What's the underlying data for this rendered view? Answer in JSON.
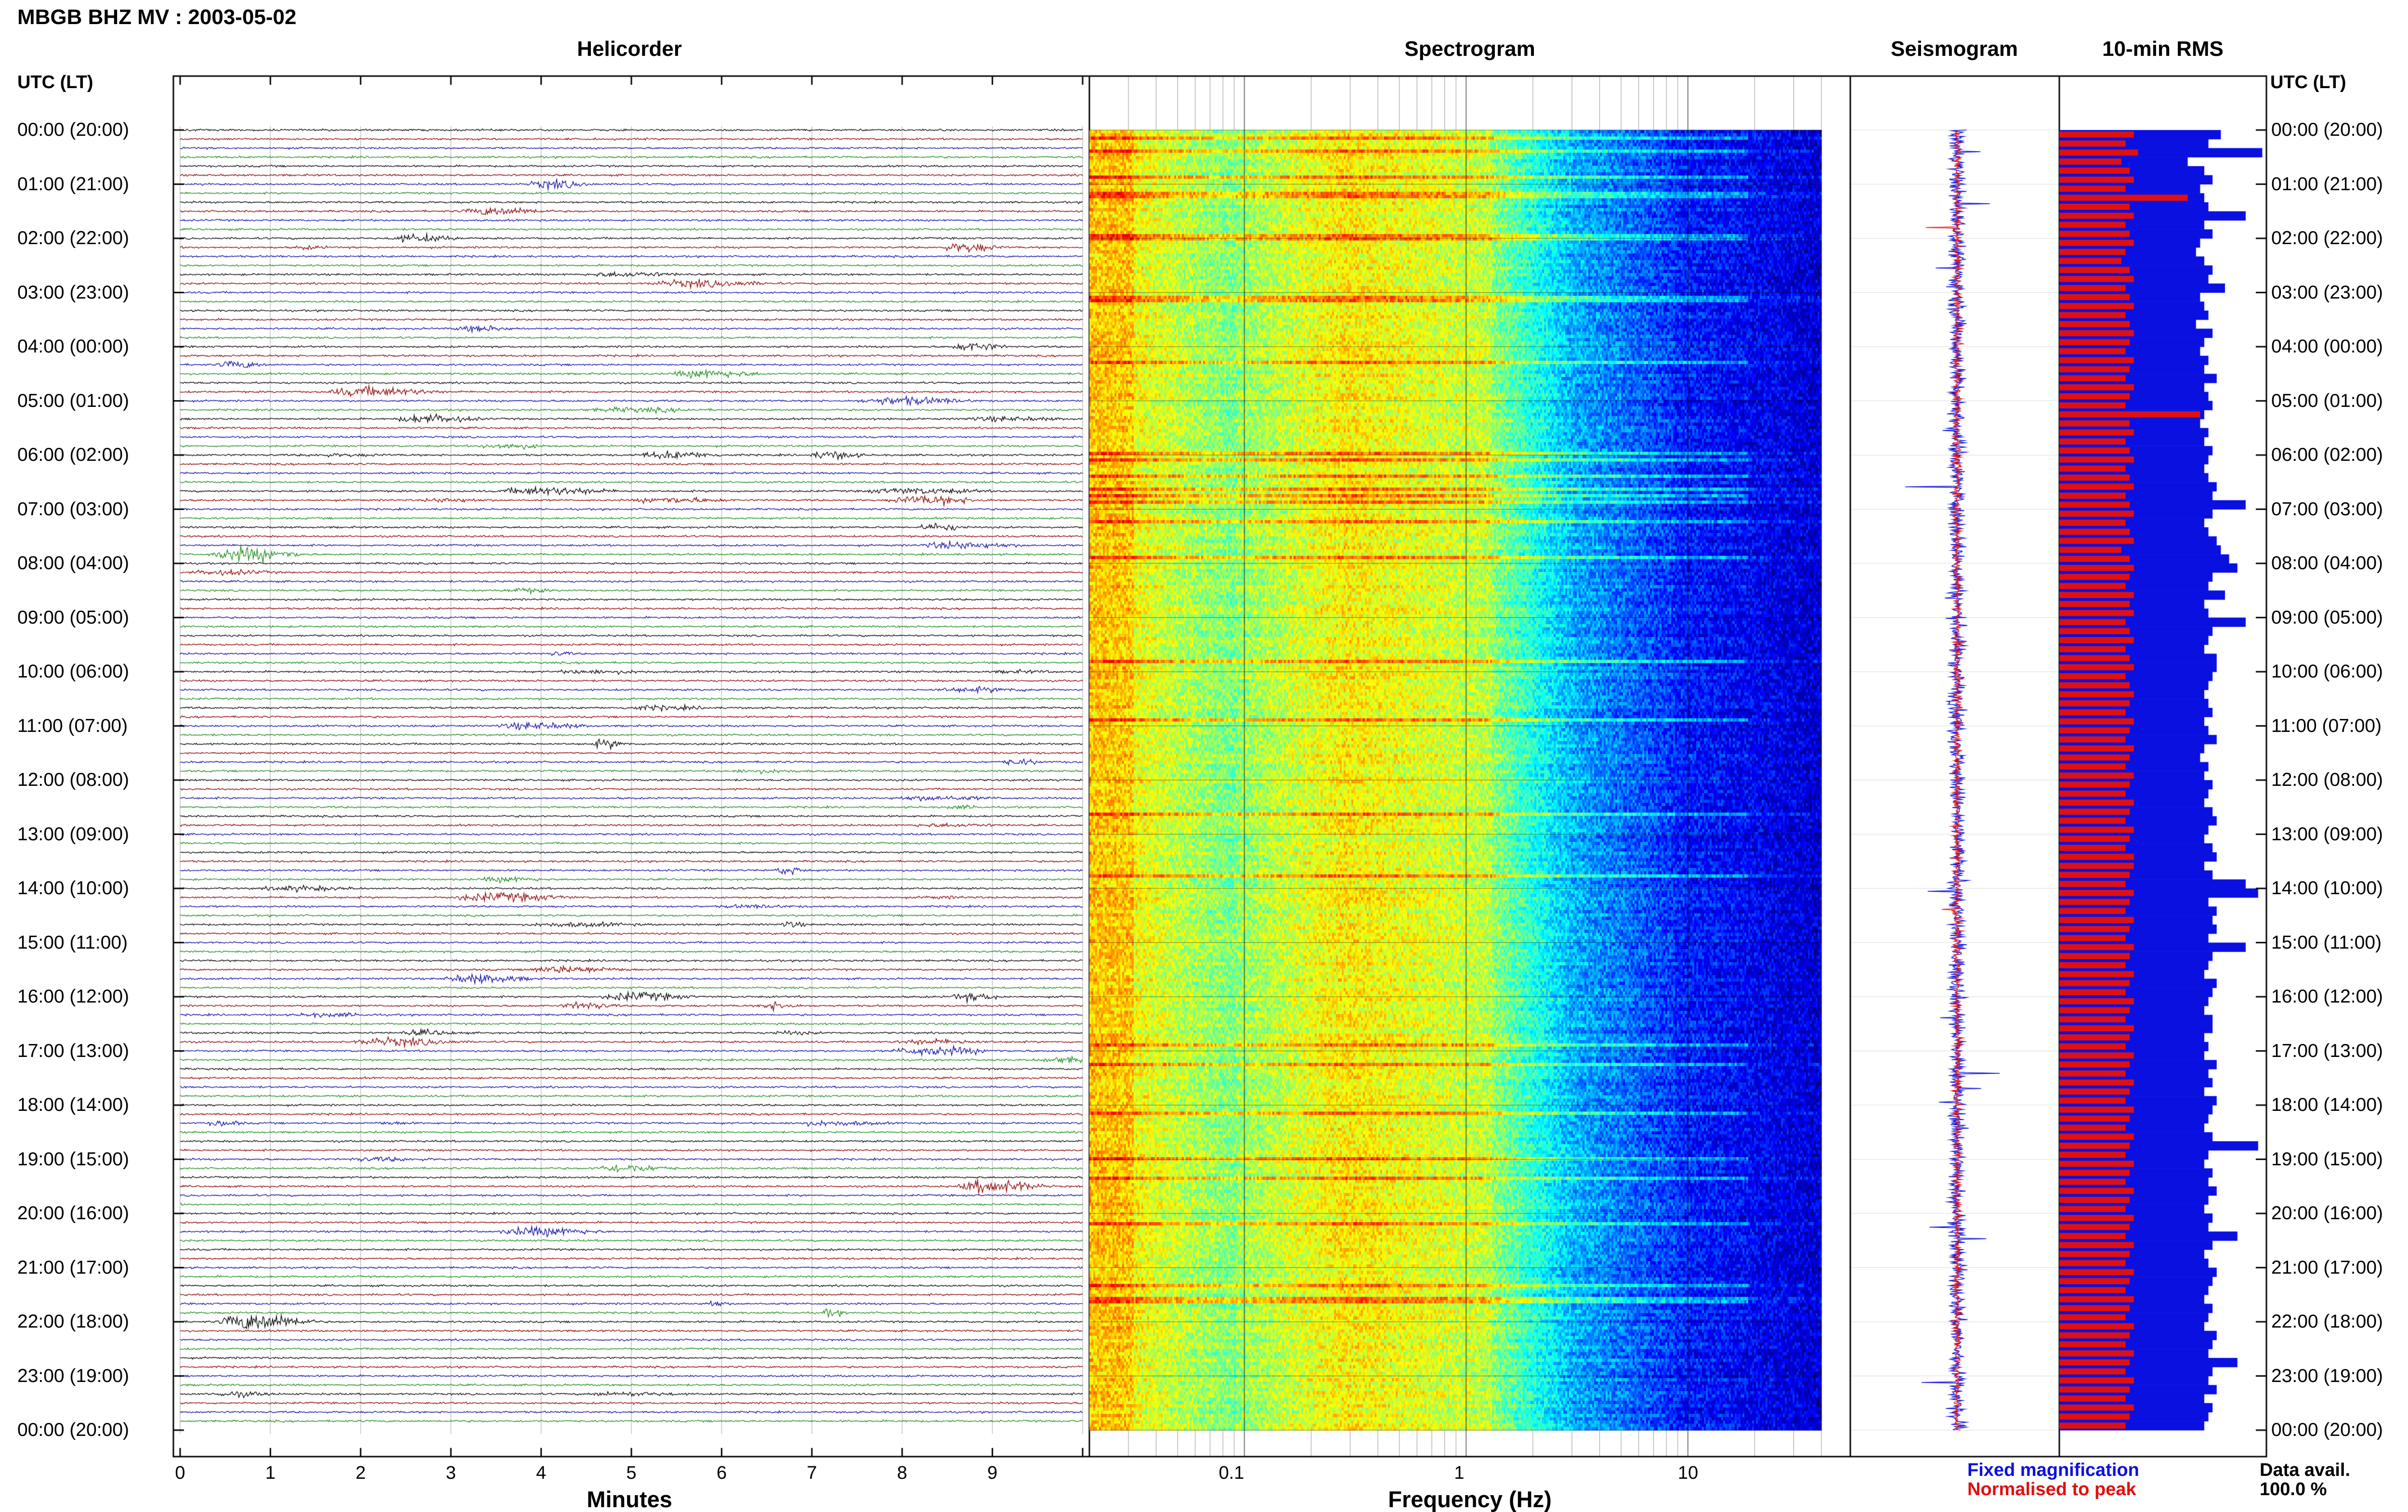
{
  "title": "MBGB BHZ MV : 2003-05-02",
  "panels": {
    "helicorder": "Helicorder",
    "spectrogram": "Spectrogram",
    "seismogram": "Seismogram",
    "rms": "10-min RMS"
  },
  "axis_header": "UTC (LT)",
  "hour_labels": [
    "00:00 (20:00)",
    "01:00 (21:00)",
    "02:00 (22:00)",
    "03:00 (23:00)",
    "04:00 (00:00)",
    "05:00 (01:00)",
    "06:00 (02:00)",
    "07:00 (03:00)",
    "08:00 (04:00)",
    "09:00 (05:00)",
    "10:00 (06:00)",
    "11:00 (07:00)",
    "12:00 (08:00)",
    "13:00 (09:00)",
    "14:00 (10:00)",
    "15:00 (11:00)",
    "16:00 (12:00)",
    "17:00 (13:00)",
    "18:00 (14:00)",
    "19:00 (15:00)",
    "20:00 (16:00)",
    "21:00 (17:00)",
    "22:00 (18:00)",
    "23:00 (19:00)",
    "00:00 (20:00)"
  ],
  "helicorder_axis": {
    "label": "Minutes",
    "ticks": [
      "0",
      "1",
      "2",
      "3",
      "4",
      "5",
      "6",
      "7",
      "8",
      "9"
    ]
  },
  "spectrogram_axis": {
    "label": "Frequency (Hz)",
    "ticks": [
      "0.1",
      "1",
      "10"
    ]
  },
  "legend": {
    "fixed": "Fixed magnification",
    "normalised": "Normalised to peak"
  },
  "availability": {
    "label": "Data avail.",
    "value": "100.0 %"
  },
  "colors": {
    "trace_black": "#000000",
    "trace_red": "#8b0000",
    "trace_blue": "#0a0aa0",
    "trace_green": "#1a8a1a",
    "fixed_magnification": "#0a10e0",
    "normalised_to_peak": "#e01010"
  },
  "chart_data": {
    "type": "bar",
    "rms_fixed_fraction": [
      0.78,
      0.72,
      0.98,
      0.62,
      0.7,
      0.74,
      0.68,
      0.7,
      0.72,
      0.9,
      0.7,
      0.74,
      0.68,
      0.66,
      0.7,
      0.74,
      0.72,
      0.8,
      0.68,
      0.7,
      0.72,
      0.66,
      0.74,
      0.7,
      0.68,
      0.72,
      0.7,
      0.76,
      0.7,
      0.72,
      0.74,
      0.7,
      0.68,
      0.72,
      0.7,
      0.74,
      0.72,
      0.7,
      0.72,
      0.76,
      0.74,
      0.9,
      0.74,
      0.7,
      0.72,
      0.76,
      0.78,
      0.82,
      0.86,
      0.74,
      0.72,
      0.8,
      0.7,
      0.72,
      0.9,
      0.74,
      0.72,
      0.7,
      0.76,
      0.76,
      0.74,
      0.72,
      0.7,
      0.72,
      0.74,
      0.7,
      0.72,
      0.76,
      0.7,
      0.68,
      0.72,
      0.7,
      0.74,
      0.72,
      0.7,
      0.74,
      0.76,
      0.72,
      0.7,
      0.74,
      0.76,
      0.7,
      0.74,
      0.9,
      0.96,
      0.72,
      0.76,
      0.74,
      0.76,
      0.72,
      0.9,
      0.74,
      0.72,
      0.7,
      0.76,
      0.74,
      0.72,
      0.7,
      0.74,
      0.74,
      0.7,
      0.72,
      0.7,
      0.76,
      0.72,
      0.74,
      0.7,
      0.76,
      0.74,
      0.72,
      0.7,
      0.74,
      0.96,
      0.72,
      0.7,
      0.74,
      0.72,
      0.76,
      0.72,
      0.7,
      0.74,
      0.72,
      0.86,
      0.74,
      0.7,
      0.72,
      0.76,
      0.74,
      0.72,
      0.7,
      0.74,
      0.72,
      0.7,
      0.76,
      0.74,
      0.72,
      0.86,
      0.74,
      0.72,
      0.76,
      0.7,
      0.74,
      0.72,
      0.7
    ],
    "rms_normalised_fraction": [
      0.36,
      0.32,
      0.38,
      0.3,
      0.34,
      0.36,
      0.32,
      0.62,
      0.34,
      0.36,
      0.32,
      0.34,
      0.36,
      0.32,
      0.3,
      0.34,
      0.36,
      0.32,
      0.34,
      0.36,
      0.32,
      0.34,
      0.36,
      0.34,
      0.32,
      0.36,
      0.34,
      0.32,
      0.36,
      0.34,
      0.32,
      0.68,
      0.34,
      0.36,
      0.32,
      0.34,
      0.36,
      0.32,
      0.34,
      0.36,
      0.32,
      0.34,
      0.36,
      0.32,
      0.34,
      0.36,
      0.3,
      0.34,
      0.36,
      0.34,
      0.32,
      0.36,
      0.34,
      0.36,
      0.32,
      0.34,
      0.36,
      0.32,
      0.34,
      0.36,
      0.32,
      0.34,
      0.36,
      0.34,
      0.32,
      0.36,
      0.34,
      0.32,
      0.36,
      0.34,
      0.32,
      0.36,
      0.34,
      0.32,
      0.36,
      0.34,
      0.32,
      0.36,
      0.34,
      0.32,
      0.36,
      0.36,
      0.34,
      0.32,
      0.36,
      0.34,
      0.32,
      0.36,
      0.34,
      0.32,
      0.36,
      0.34,
      0.32,
      0.36,
      0.34,
      0.32,
      0.36,
      0.34,
      0.32,
      0.36,
      0.34,
      0.32,
      0.36,
      0.34,
      0.32,
      0.36,
      0.34,
      0.32,
      0.36,
      0.34,
      0.32,
      0.36,
      0.34,
      0.32,
      0.36,
      0.34,
      0.32,
      0.36,
      0.34,
      0.32,
      0.36,
      0.34,
      0.32,
      0.36,
      0.34,
      0.32,
      0.36,
      0.34,
      0.32,
      0.36,
      0.34,
      0.32,
      0.36,
      0.34,
      0.32,
      0.36,
      0.34,
      0.32,
      0.36,
      0.34,
      0.32,
      0.36,
      0.34,
      0.32
    ],
    "helicorder_rows": 144,
    "spectrogram_freq_range_hz": [
      0.02,
      40
    ]
  }
}
